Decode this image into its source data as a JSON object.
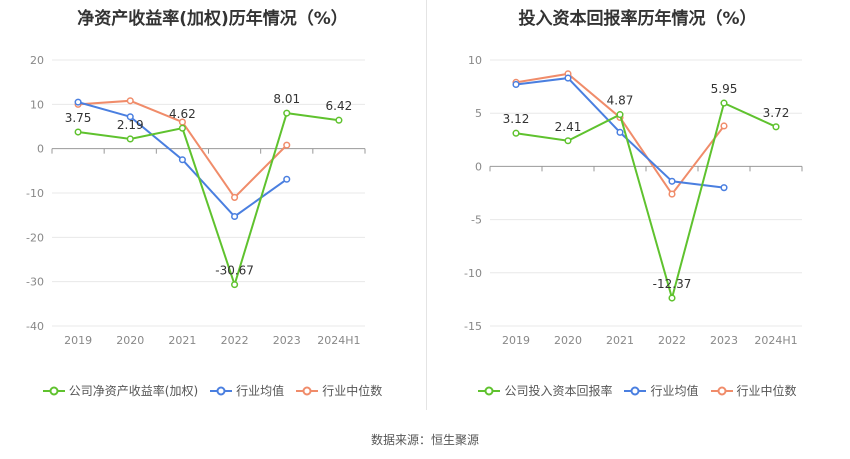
{
  "charts": [
    {
      "title": "净资产收益率(加权)历年情况（%）",
      "legend": [
        "公司净资产收益率(加权)",
        "行业均值",
        "行业中位数"
      ]
    },
    {
      "title": "投入资本回报率历年情况（%）",
      "legend": [
        "公司投入资本回报率",
        "行业均值",
        "行业中位数"
      ]
    }
  ],
  "source": "数据来源：恒生聚源",
  "colors": {
    "company": "#5fc22e",
    "industry_avg": "#4a7fe0",
    "industry_median": "#f08c6a"
  },
  "chart_data": [
    {
      "type": "line",
      "title": "净资产收益率(加权)历年情况（%）",
      "categories": [
        "2019",
        "2020",
        "2021",
        "2022",
        "2023",
        "2024H1"
      ],
      "ylim": [
        -40,
        20
      ],
      "yticks": [
        -40,
        -30,
        -20,
        -10,
        0,
        10,
        20
      ],
      "grid": true,
      "legend_position": "bottom",
      "series": [
        {
          "name": "公司净资产收益率(加权)",
          "values": [
            3.75,
            2.19,
            4.62,
            -30.67,
            8.01,
            6.42
          ],
          "labels": [
            "3.75",
            "2.19",
            "4.62",
            "-30.67",
            "8.01",
            "6.42"
          ]
        },
        {
          "name": "行业均值",
          "values": [
            10.5,
            7.2,
            -2.5,
            -15.3,
            -6.9,
            null
          ]
        },
        {
          "name": "行业中位数",
          "values": [
            10.0,
            10.8,
            6.0,
            -11.0,
            0.8,
            null
          ]
        }
      ]
    },
    {
      "type": "line",
      "title": "投入资本回报率历年情况（%）",
      "categories": [
        "2019",
        "2020",
        "2021",
        "2022",
        "2023",
        "2024H1"
      ],
      "ylim": [
        -15,
        10
      ],
      "yticks": [
        -15,
        -10,
        -5,
        0,
        5,
        10
      ],
      "grid": true,
      "legend_position": "bottom",
      "series": [
        {
          "name": "公司投入资本回报率",
          "values": [
            3.12,
            2.41,
            4.87,
            -12.37,
            5.95,
            3.72
          ],
          "labels": [
            "3.12",
            "2.41",
            "4.87",
            "-12.37",
            "5.95",
            "3.72"
          ]
        },
        {
          "name": "行业均值",
          "values": [
            7.7,
            8.3,
            3.2,
            -1.4,
            -2.0,
            null
          ]
        },
        {
          "name": "行业中位数",
          "values": [
            7.9,
            8.7,
            4.6,
            -2.6,
            3.8,
            null
          ]
        }
      ]
    }
  ]
}
